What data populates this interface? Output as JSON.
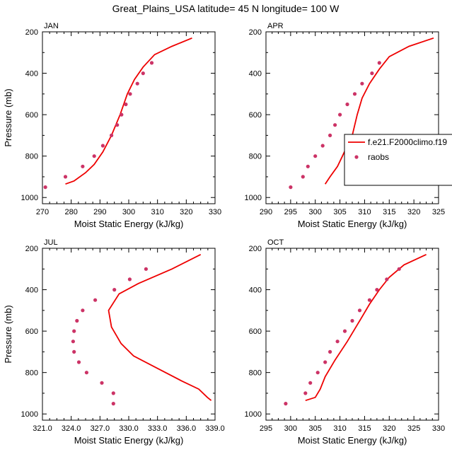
{
  "title": "Great_Plains_USA  latitude= 45 N longitude= 100 W",
  "colors": {
    "model": "#ee0000",
    "obs": "#cc3366",
    "axis": "#000000"
  },
  "legend": {
    "model_label": "f.e21.F2000climo.f19",
    "obs_label": "raobs",
    "panel": "APR"
  },
  "chart_data": [
    {
      "type": "line",
      "panel": "JAN",
      "title": "JAN",
      "xlabel": "Moist Static Energy (kJ/kg)",
      "ylabel": "Pressure (mb)",
      "xlim": [
        270,
        330
      ],
      "ylim": [
        1030,
        200
      ],
      "xticks": [
        "270",
        "280",
        "290",
        "300",
        "310",
        "320",
        "330"
      ],
      "yticks": [
        "200",
        "400",
        "600",
        "800",
        "1000"
      ],
      "series": [
        {
          "name": "f.e21.F2000climo.f19",
          "style": "line",
          "points": [
            [
              278,
              935
            ],
            [
              281,
              920
            ],
            [
              285,
              880
            ],
            [
              288,
              840
            ],
            [
              291,
              780
            ],
            [
              294,
              700
            ],
            [
              297,
              600
            ],
            [
              299.5,
              500
            ],
            [
              302,
              430
            ],
            [
              305,
              370
            ],
            [
              309,
              310
            ],
            [
              315,
              270
            ],
            [
              322,
              230
            ]
          ]
        },
        {
          "name": "raobs",
          "style": "markers",
          "points": [
            [
              271,
              950
            ],
            [
              278,
              900
            ],
            [
              284,
              850
            ],
            [
              288,
              800
            ],
            [
              291,
              750
            ],
            [
              294,
              700
            ],
            [
              296,
              650
            ],
            [
              297.5,
              600
            ],
            [
              299,
              550
            ],
            [
              300.5,
              500
            ],
            [
              303,
              450
            ],
            [
              305,
              400
            ],
            [
              308,
              350
            ]
          ]
        }
      ]
    },
    {
      "type": "line",
      "panel": "APR",
      "title": "APR",
      "xlabel": "Moist Static Energy (kJ/kg)",
      "ylabel": "",
      "xlim": [
        290,
        325
      ],
      "ylim": [
        1030,
        200
      ],
      "xticks": [
        "290",
        "295",
        "300",
        "305",
        "310",
        "315",
        "320",
        "325"
      ],
      "yticks": [
        "200",
        "400",
        "600",
        "800",
        "1000"
      ],
      "series": [
        {
          "name": "f.e21.F2000climo.f19",
          "style": "line",
          "points": [
            [
              302,
              935
            ],
            [
              303,
              900
            ],
            [
              304.5,
              850
            ],
            [
              305.5,
              800
            ],
            [
              306.5,
              750
            ],
            [
              307.5,
              700
            ],
            [
              308.5,
              600
            ],
            [
              309.5,
              520
            ],
            [
              311,
              450
            ],
            [
              313,
              380
            ],
            [
              315,
              320
            ],
            [
              319,
              270
            ],
            [
              324,
              230
            ]
          ]
        },
        {
          "name": "raobs",
          "style": "markers",
          "points": [
            [
              295,
              950
            ],
            [
              297.5,
              900
            ],
            [
              298.5,
              850
            ],
            [
              300,
              800
            ],
            [
              301.5,
              750
            ],
            [
              303,
              700
            ],
            [
              304,
              650
            ],
            [
              305,
              600
            ],
            [
              306.5,
              550
            ],
            [
              308,
              500
            ],
            [
              309.5,
              450
            ],
            [
              311.5,
              400
            ],
            [
              313,
              350
            ]
          ]
        }
      ]
    },
    {
      "type": "line",
      "panel": "JUL",
      "title": "JUL",
      "xlabel": "Moist Static Energy (kJ/kg)",
      "ylabel": "Pressure (mb)",
      "xlim": [
        321,
        339
      ],
      "ylim": [
        1030,
        200
      ],
      "xticks": [
        "321.0",
        "324.0",
        "327.0",
        "330.0",
        "333.0",
        "336.0",
        "339.0"
      ],
      "yticks": [
        "200",
        "400",
        "600",
        "800",
        "1000"
      ],
      "series": [
        {
          "name": "f.e21.F2000climo.f19",
          "style": "line",
          "points": [
            [
              338.6,
              935
            ],
            [
              338.2,
              920
            ],
            [
              337.3,
              880
            ],
            [
              335.5,
              840
            ],
            [
              333,
              780
            ],
            [
              330.5,
              720
            ],
            [
              329.2,
              660
            ],
            [
              328.2,
              580
            ],
            [
              327.9,
              500
            ],
            [
              329,
              420
            ],
            [
              331,
              370
            ],
            [
              334.5,
              300
            ],
            [
              337.5,
              230
            ]
          ]
        },
        {
          "name": "raobs",
          "style": "markers",
          "points": [
            [
              328.4,
              950
            ],
            [
              328.4,
              900
            ],
            [
              327.2,
              850
            ],
            [
              325.6,
              800
            ],
            [
              324.8,
              750
            ],
            [
              324.3,
              700
            ],
            [
              324.2,
              650
            ],
            [
              324.3,
              600
            ],
            [
              324.6,
              550
            ],
            [
              325.2,
              500
            ],
            [
              326.5,
              450
            ],
            [
              328.5,
              400
            ],
            [
              330.1,
              350
            ],
            [
              331.8,
              300
            ]
          ]
        }
      ]
    },
    {
      "type": "line",
      "panel": "OCT",
      "title": "OCT",
      "xlabel": "Moist Static Energy (kJ/kg)",
      "ylabel": "",
      "xlim": [
        295,
        330
      ],
      "ylim": [
        1030,
        200
      ],
      "xticks": [
        "295",
        "300",
        "305",
        "310",
        "315",
        "320",
        "325",
        "330"
      ],
      "yticks": [
        "200",
        "400",
        "600",
        "800",
        "1000"
      ],
      "series": [
        {
          "name": "f.e21.F2000climo.f19",
          "style": "line",
          "points": [
            [
              303,
              935
            ],
            [
              305,
              920
            ],
            [
              306,
              880
            ],
            [
              307,
              820
            ],
            [
              309,
              740
            ],
            [
              311.5,
              650
            ],
            [
              314,
              550
            ],
            [
              316,
              470
            ],
            [
              318,
              400
            ],
            [
              320,
              340
            ],
            [
              323,
              280
            ],
            [
              327.5,
              230
            ]
          ]
        },
        {
          "name": "raobs",
          "style": "markers",
          "points": [
            [
              299,
              950
            ],
            [
              303,
              900
            ],
            [
              304,
              850
            ],
            [
              305.5,
              800
            ],
            [
              307,
              750
            ],
            [
              308,
              700
            ],
            [
              309.5,
              650
            ],
            [
              311,
              600
            ],
            [
              312.5,
              550
            ],
            [
              314,
              500
            ],
            [
              316,
              450
            ],
            [
              317.5,
              400
            ],
            [
              319.5,
              350
            ],
            [
              322,
              300
            ]
          ]
        }
      ]
    }
  ]
}
